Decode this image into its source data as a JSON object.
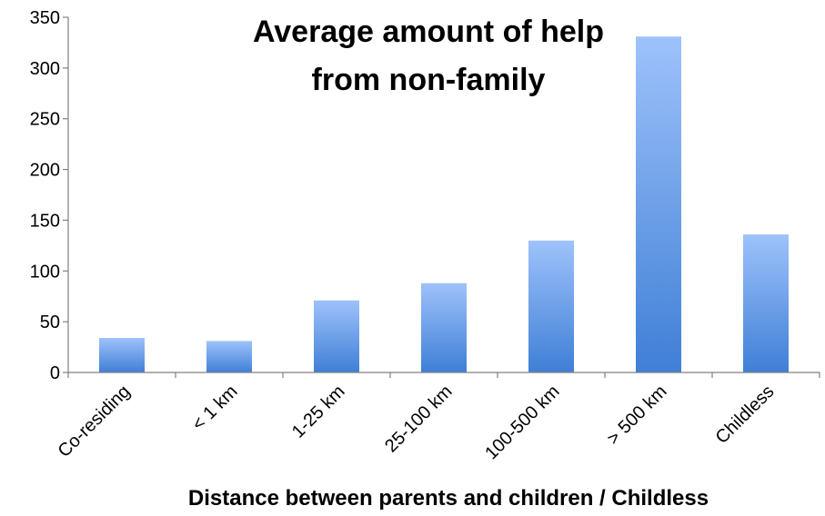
{
  "chart_data": {
    "type": "bar",
    "title_lines": [
      "Average amount of help",
      "from non-family"
    ],
    "xlabel": "Distance between parents and children / Childless",
    "ylabel": "",
    "categories": [
      "Co-residing",
      "< 1 km",
      "1-25 km",
      "25-100 km",
      "100-500 km",
      "> 500 km",
      "Childless"
    ],
    "values": [
      34,
      31,
      71,
      88,
      130,
      331,
      136
    ],
    "ylim": [
      0,
      350
    ],
    "yticks": [
      0,
      50,
      100,
      150,
      200,
      250,
      300,
      350
    ],
    "grid": false,
    "legend": "none",
    "colors": {
      "bar_top": "#9ec2fb",
      "bar_bottom": "#3f7fd6",
      "axis": "#808080"
    }
  }
}
